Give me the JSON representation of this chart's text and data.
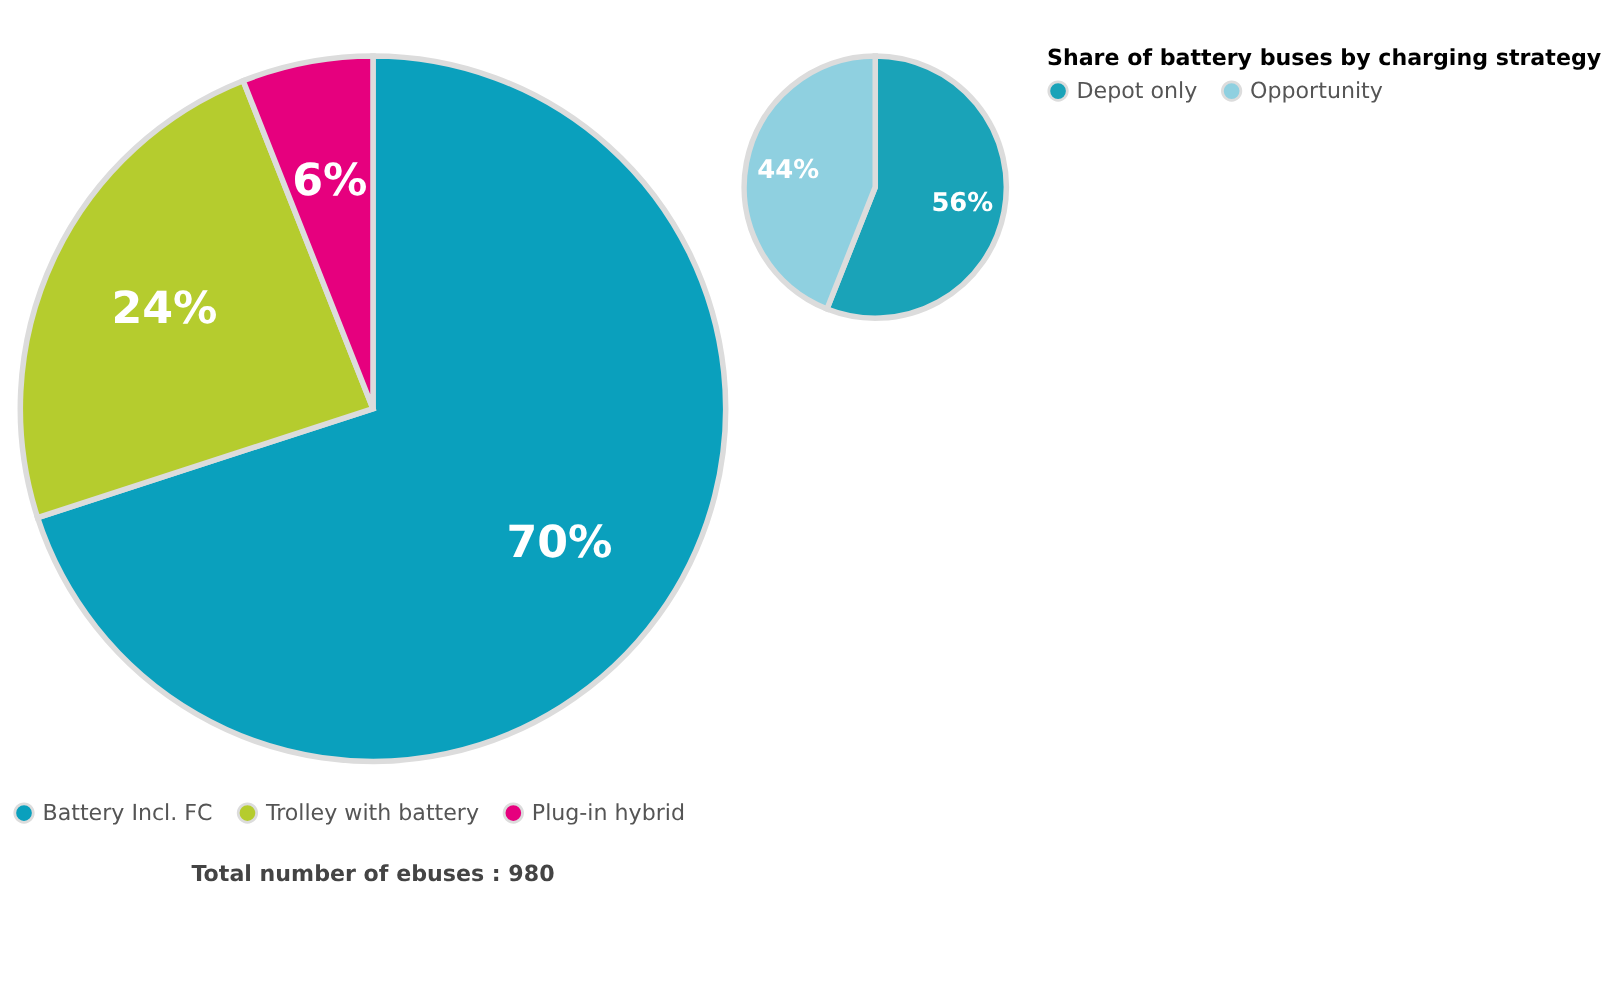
{
  "chart_data": [
    {
      "type": "pie",
      "categories": [
        "Battery Incl. FC",
        "Trolley with battery",
        "Plug-in hybrid"
      ],
      "values": [
        70,
        24,
        6
      ],
      "value_labels": [
        "70%",
        "24%",
        "6%"
      ],
      "colors": [
        "#0aa0bd",
        "#b5cc2e",
        "#e6007e"
      ],
      "legend": "bottom",
      "annotations": [
        "Total number of ebuses : 980"
      ]
    },
    {
      "type": "pie",
      "categories": [
        "Depot only",
        "Opportunity"
      ],
      "values": [
        56,
        44
      ],
      "value_labels": [
        "56%",
        "44%"
      ],
      "colors": [
        "#1aa3b8",
        "#8fd0e0"
      ],
      "legend": "right",
      "legend_title": "Share of battery buses by charging strategy"
    }
  ]
}
